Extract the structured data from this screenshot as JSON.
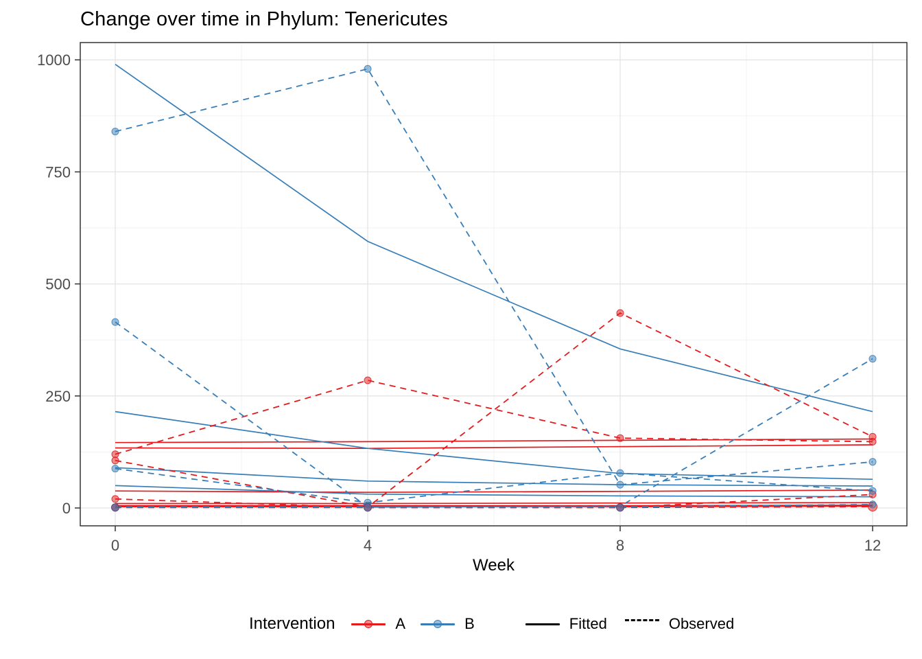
{
  "chart_data": {
    "type": "line",
    "title": "Change over time in Phylum: Tenericutes",
    "xlabel": "Week",
    "x": [
      0,
      4,
      8,
      12
    ],
    "x_ticks": [
      "0",
      "4",
      "8",
      "12"
    ],
    "y_ticks": [
      "0",
      "250",
      "500",
      "750",
      "1000"
    ],
    "xlim": [
      0,
      12
    ],
    "ylim": [
      0,
      1000
    ],
    "grid": "major+minor",
    "legend": {
      "position": "bottom",
      "title": "Intervention",
      "group_entries": [
        "A",
        "B"
      ],
      "linetype_entries": [
        "Fitted",
        "Observed"
      ]
    },
    "colors": {
      "A": "#E41A1C",
      "B": "#377EB8",
      "A_point_fill": "rgba(228,26,28,0.5)",
      "B_point_fill": "rgba(55,126,184,0.5)",
      "overlap_point": "#6E5E8C",
      "overlap_point_stroke": "#554a75",
      "grid_major": "#E4E4E4",
      "grid_minor": "#F1F1F1",
      "panel_border": "#333333",
      "axis_text": "#4D4D4D",
      "axis_tick": "#333333",
      "text": "#000000"
    },
    "series": [
      {
        "name": "A-fitted-1",
        "group": "A",
        "kind": "fitted",
        "width": 1.7,
        "values": [
          146,
          148,
          151,
          154
        ]
      },
      {
        "name": "A-fitted-2",
        "group": "A",
        "kind": "fitted",
        "width": 1.7,
        "values": [
          134,
          133,
          137,
          141
        ]
      },
      {
        "name": "A-fitted-3",
        "group": "A",
        "kind": "fitted",
        "width": 1.7,
        "values": [
          38,
          35,
          37,
          40
        ]
      },
      {
        "name": "A-fitted-4",
        "group": "A",
        "kind": "fitted",
        "width": 1.7,
        "values": [
          10,
          10,
          11,
          12
        ]
      },
      {
        "name": "A-fitted-5",
        "group": "A",
        "kind": "fitted",
        "width": 3.2,
        "values": [
          4,
          4,
          4,
          5
        ]
      },
      {
        "name": "B-fitted-1",
        "group": "B",
        "kind": "fitted",
        "width": 1.7,
        "values": [
          990,
          595,
          355,
          215
        ]
      },
      {
        "name": "B-fitted-2",
        "group": "B",
        "kind": "fitted",
        "width": 1.7,
        "values": [
          215,
          133,
          77,
          64
        ]
      },
      {
        "name": "B-fitted-3",
        "group": "B",
        "kind": "fitted",
        "width": 1.7,
        "values": [
          90,
          60,
          52,
          49
        ]
      },
      {
        "name": "B-fitted-4",
        "group": "B",
        "kind": "fitted",
        "width": 1.7,
        "values": [
          50,
          31,
          27,
          25
        ]
      },
      {
        "name": "A-observed-1",
        "group": "A",
        "kind": "observed",
        "width": 1.8,
        "values": [
          120,
          285,
          156,
          148
        ],
        "markers": [
          [
            0,
            120
          ],
          [
            4,
            285
          ],
          [
            8,
            156
          ],
          [
            12,
            148
          ]
        ]
      },
      {
        "name": "A-observed-2",
        "group": "A",
        "kind": "observed",
        "width": 1.8,
        "values": [
          106,
          2,
          435,
          159
        ],
        "markers": [
          [
            0,
            106
          ],
          [
            8,
            435
          ],
          [
            12,
            159
          ]
        ]
      },
      {
        "name": "A-observed-3",
        "group": "A",
        "kind": "observed",
        "width": 1.8,
        "values": [
          20,
          1,
          1,
          30
        ],
        "markers": [
          [
            0,
            20
          ],
          [
            12,
            30
          ]
        ]
      },
      {
        "name": "A-observed-4",
        "group": "A",
        "kind": "observed",
        "width": 1.8,
        "values": [
          1,
          1,
          1,
          3
        ],
        "markers": [
          [
            12,
            3
          ]
        ],
        "big_marker": true
      },
      {
        "name": "B-observed-1",
        "group": "B",
        "kind": "observed",
        "width": 1.8,
        "values": [
          840,
          980,
          52,
          103
        ],
        "markers": [
          [
            0,
            840
          ],
          [
            4,
            980
          ],
          [
            8,
            52
          ],
          [
            12,
            103
          ]
        ]
      },
      {
        "name": "B-observed-2",
        "group": "B",
        "kind": "observed",
        "width": 1.8,
        "values": [
          415,
          2,
          4,
          333
        ],
        "markers": [
          [
            0,
            415
          ],
          [
            12,
            333
          ]
        ]
      },
      {
        "name": "B-observed-3",
        "group": "B",
        "kind": "observed",
        "width": 1.8,
        "values": [
          88,
          12,
          78,
          38
        ],
        "markers": [
          [
            0,
            88
          ],
          [
            4,
            12
          ],
          [
            8,
            78
          ],
          [
            12,
            38
          ]
        ]
      },
      {
        "name": "B-observed-4",
        "group": "B",
        "kind": "observed",
        "width": 1.8,
        "values": [
          2,
          2,
          2,
          8
        ],
        "markers": [
          [
            12,
            8
          ]
        ]
      }
    ],
    "overlap_points": [
      [
        0,
        1
      ],
      [
        4,
        1
      ],
      [
        8,
        1
      ]
    ]
  }
}
